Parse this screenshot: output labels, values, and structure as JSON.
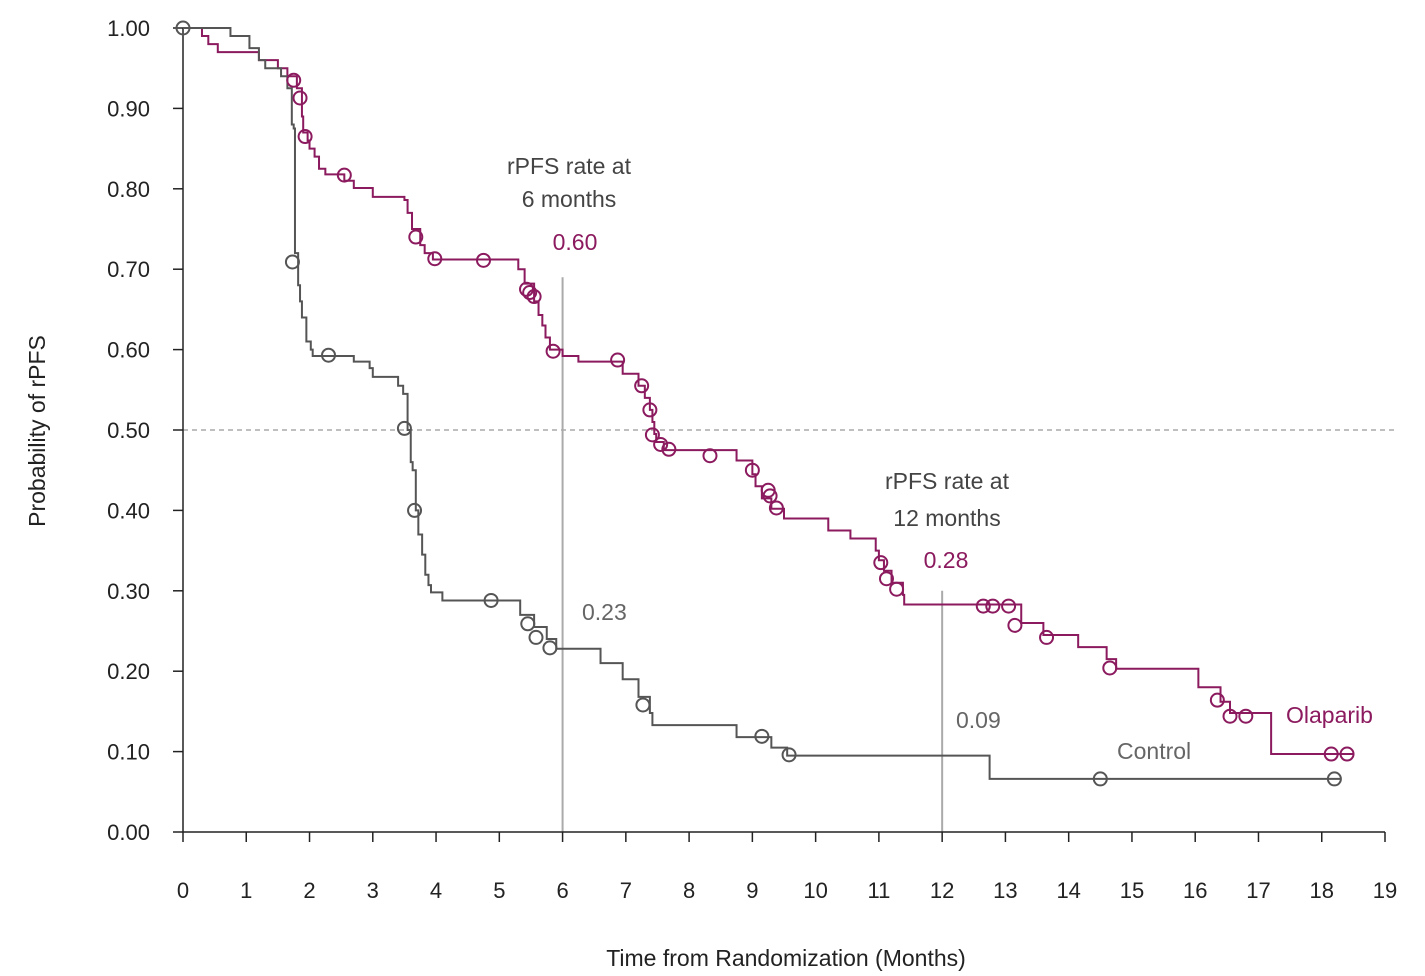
{
  "chart_data": {
    "type": "line",
    "xlabel": "Time from Randomization (Months)",
    "ylabel": "Probability of rPFS",
    "xlim": [
      0,
      19
    ],
    "ylim": [
      0,
      1
    ],
    "x_ticks": [
      "0",
      "1",
      "2",
      "3",
      "4",
      "5",
      "6",
      "7",
      "8",
      "9",
      "10",
      "11",
      "12",
      "13",
      "14",
      "15",
      "16",
      "17",
      "18",
      "19"
    ],
    "y_ticks": [
      "0.00",
      "0.10",
      "0.20",
      "0.30",
      "0.40",
      "0.50",
      "0.60",
      "0.70",
      "0.80",
      "0.90",
      "1.00"
    ],
    "reference_line_y": 0.5,
    "time_lines": [
      {
        "x": 6,
        "y_top": 0.69
      },
      {
        "x": 12,
        "y_top": 0.3
      }
    ],
    "series": [
      {
        "name": "Olaparib",
        "color": "#8b1a5e",
        "steps": [
          [
            0,
            1.0
          ],
          [
            0.3,
            0.99
          ],
          [
            0.4,
            0.98
          ],
          [
            0.55,
            0.97
          ],
          [
            1.2,
            0.96
          ],
          [
            1.5,
            0.95
          ],
          [
            1.65,
            0.94
          ],
          [
            1.8,
            0.925
          ],
          [
            1.88,
            0.89
          ],
          [
            1.9,
            0.87
          ],
          [
            1.97,
            0.86
          ],
          [
            2.0,
            0.85
          ],
          [
            2.08,
            0.84
          ],
          [
            2.15,
            0.825
          ],
          [
            2.25,
            0.818
          ],
          [
            2.55,
            0.81
          ],
          [
            2.7,
            0.801
          ],
          [
            3.0,
            0.79
          ],
          [
            3.5,
            0.786
          ],
          [
            3.55,
            0.77
          ],
          [
            3.62,
            0.75
          ],
          [
            3.75,
            0.73
          ],
          [
            3.82,
            0.72
          ],
          [
            3.95,
            0.712
          ],
          [
            5.3,
            0.7
          ],
          [
            5.4,
            0.682
          ],
          [
            5.55,
            0.66
          ],
          [
            5.62,
            0.643
          ],
          [
            5.68,
            0.63
          ],
          [
            5.73,
            0.615
          ],
          [
            5.8,
            0.6
          ],
          [
            6.0,
            0.592
          ],
          [
            6.25,
            0.585
          ],
          [
            6.95,
            0.57
          ],
          [
            7.2,
            0.555
          ],
          [
            7.3,
            0.54
          ],
          [
            7.38,
            0.525
          ],
          [
            7.42,
            0.51
          ],
          [
            7.45,
            0.495
          ],
          [
            7.48,
            0.485
          ],
          [
            7.6,
            0.475
          ],
          [
            8.75,
            0.462
          ],
          [
            9.0,
            0.445
          ],
          [
            9.05,
            0.43
          ],
          [
            9.15,
            0.415
          ],
          [
            9.3,
            0.402
          ],
          [
            9.5,
            0.39
          ],
          [
            10.2,
            0.375
          ],
          [
            10.55,
            0.365
          ],
          [
            10.95,
            0.35
          ],
          [
            11.0,
            0.338
          ],
          [
            11.08,
            0.325
          ],
          [
            11.2,
            0.31
          ],
          [
            11.38,
            0.295
          ],
          [
            11.4,
            0.283
          ],
          [
            13.25,
            0.26
          ],
          [
            13.6,
            0.245
          ],
          [
            14.15,
            0.23
          ],
          [
            14.6,
            0.215
          ],
          [
            14.75,
            0.203
          ],
          [
            16.05,
            0.18
          ],
          [
            16.4,
            0.162
          ],
          [
            16.55,
            0.148
          ],
          [
            17.2,
            0.097
          ],
          [
            18.5,
            0.097
          ]
        ],
        "censor": [
          [
            1.75,
            0.935
          ],
          [
            1.85,
            0.913
          ],
          [
            1.93,
            0.865
          ],
          [
            2.55,
            0.817
          ],
          [
            3.68,
            0.74
          ],
          [
            3.98,
            0.713
          ],
          [
            4.75,
            0.711
          ],
          [
            5.43,
            0.675
          ],
          [
            5.48,
            0.671
          ],
          [
            5.55,
            0.666
          ],
          [
            5.85,
            0.598
          ],
          [
            6.87,
            0.587
          ],
          [
            7.25,
            0.555
          ],
          [
            7.38,
            0.525
          ],
          [
            7.42,
            0.494
          ],
          [
            7.55,
            0.482
          ],
          [
            7.68,
            0.476
          ],
          [
            8.33,
            0.468
          ],
          [
            9.0,
            0.45
          ],
          [
            9.25,
            0.425
          ],
          [
            9.28,
            0.418
          ],
          [
            9.38,
            0.403
          ],
          [
            11.03,
            0.335
          ],
          [
            11.12,
            0.315
          ],
          [
            11.28,
            0.302
          ],
          [
            12.65,
            0.281
          ],
          [
            12.8,
            0.281
          ],
          [
            13.05,
            0.281
          ],
          [
            13.15,
            0.257
          ],
          [
            13.65,
            0.242
          ],
          [
            14.65,
            0.204
          ],
          [
            16.35,
            0.164
          ],
          [
            16.55,
            0.144
          ],
          [
            16.8,
            0.144
          ],
          [
            18.15,
            0.097
          ],
          [
            18.4,
            0.097
          ]
        ]
      },
      {
        "name": "Control",
        "color": "#555555",
        "steps": [
          [
            0,
            1.0
          ],
          [
            0.75,
            0.99
          ],
          [
            1.05,
            0.975
          ],
          [
            1.2,
            0.96
          ],
          [
            1.3,
            0.95
          ],
          [
            1.55,
            0.94
          ],
          [
            1.65,
            0.925
          ],
          [
            1.72,
            0.88
          ],
          [
            1.75,
            0.875
          ],
          [
            1.77,
            0.72
          ],
          [
            1.82,
            0.68
          ],
          [
            1.85,
            0.66
          ],
          [
            1.88,
            0.64
          ],
          [
            1.95,
            0.61
          ],
          [
            2.02,
            0.6
          ],
          [
            2.05,
            0.592
          ],
          [
            2.7,
            0.585
          ],
          [
            2.95,
            0.577
          ],
          [
            3.0,
            0.566
          ],
          [
            3.4,
            0.555
          ],
          [
            3.48,
            0.545
          ],
          [
            3.55,
            0.5
          ],
          [
            3.6,
            0.46
          ],
          [
            3.63,
            0.45
          ],
          [
            3.68,
            0.4
          ],
          [
            3.72,
            0.37
          ],
          [
            3.78,
            0.345
          ],
          [
            3.83,
            0.32
          ],
          [
            3.88,
            0.307
          ],
          [
            3.92,
            0.298
          ],
          [
            4.1,
            0.288
          ],
          [
            5.33,
            0.27
          ],
          [
            5.55,
            0.255
          ],
          [
            5.75,
            0.24
          ],
          [
            5.9,
            0.228
          ],
          [
            6.6,
            0.21
          ],
          [
            6.95,
            0.19
          ],
          [
            7.2,
            0.168
          ],
          [
            7.38,
            0.148
          ],
          [
            7.42,
            0.133
          ],
          [
            8.75,
            0.118
          ],
          [
            9.3,
            0.105
          ],
          [
            9.55,
            0.095
          ],
          [
            12.75,
            0.066
          ],
          [
            18.3,
            0.066
          ]
        ],
        "censor": [
          [
            0,
            1.0
          ],
          [
            1.73,
            0.709
          ],
          [
            2.3,
            0.593
          ],
          [
            3.5,
            0.502
          ],
          [
            3.66,
            0.4
          ],
          [
            4.87,
            0.288
          ],
          [
            5.45,
            0.259
          ],
          [
            5.58,
            0.242
          ],
          [
            5.8,
            0.229
          ],
          [
            7.27,
            0.158
          ],
          [
            9.15,
            0.119
          ],
          [
            9.58,
            0.096
          ],
          [
            14.5,
            0.066
          ],
          [
            18.2,
            0.066
          ]
        ]
      }
    ],
    "annotations": {
      "six_month_heading": [
        "rPFS rate at",
        "6 months"
      ],
      "six_month_olaparib": "0.60",
      "six_month_control": "0.23",
      "twelve_month_heading": [
        "rPFS rate at",
        "12 months"
      ],
      "twelve_month_olaparib": "0.28",
      "twelve_month_control": "0.09",
      "olaparib_label": "Olaparib",
      "control_label": "Control"
    },
    "colors": {
      "olaparib": "#8b1a5e",
      "control": "#555555",
      "annotation_gray": "#666666",
      "reference": "#aaaaaa",
      "axis": "#222222"
    }
  }
}
